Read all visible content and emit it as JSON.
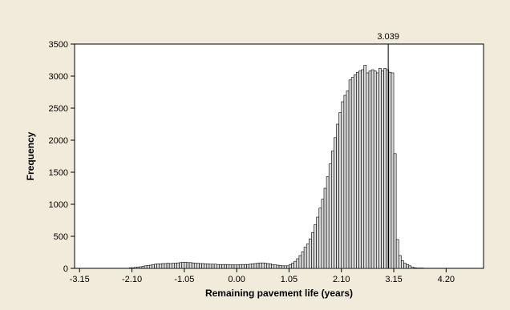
{
  "chart_data": {
    "type": "bar",
    "xlabel": "Remaining pavement life (years)",
    "ylabel": "Frequency",
    "xlim": [
      -3.25,
      4.95
    ],
    "ylim": [
      0,
      3500
    ],
    "x_ticks": [
      "-3.15",
      "-2.10",
      "-1.05",
      "0.00",
      "1.05",
      "2.10",
      "3.15",
      "4.20"
    ],
    "y_ticks": [
      "0",
      "500",
      "1000",
      "1500",
      "2000",
      "2500",
      "3000",
      "3500"
    ],
    "reference_line": {
      "x": 3.039,
      "label": "3.039"
    },
    "bin_start": -3.15,
    "bin_width": 0.05,
    "values": [
      0,
      0,
      0,
      0,
      0,
      0,
      0,
      0,
      0,
      0,
      0,
      0,
      0,
      0,
      0,
      0,
      0,
      0,
      0,
      0,
      10,
      10,
      15,
      20,
      25,
      30,
      40,
      45,
      50,
      60,
      65,
      70,
      70,
      75,
      75,
      80,
      75,
      80,
      80,
      85,
      90,
      95,
      95,
      90,
      90,
      85,
      80,
      80,
      75,
      75,
      70,
      70,
      65,
      65,
      65,
      60,
      60,
      60,
      60,
      60,
      55,
      55,
      55,
      55,
      60,
      60,
      60,
      60,
      65,
      70,
      75,
      80,
      85,
      85,
      80,
      75,
      70,
      60,
      55,
      50,
      45,
      40,
      40,
      40,
      60,
      80,
      110,
      150,
      200,
      260,
      330,
      380,
      460,
      560,
      680,
      800,
      940,
      1080,
      1250,
      1430,
      1630,
      1830,
      2040,
      2250,
      2430,
      2600,
      2700,
      2770,
      2940,
      2980,
      3020,
      3060,
      3080,
      3100,
      3170,
      3050,
      3080,
      3100,
      3080,
      3050,
      3120,
      3080,
      3120,
      3100,
      3060,
      3050,
      1790,
      450,
      200,
      120,
      80,
      60,
      40,
      20,
      10,
      5,
      5,
      5
    ]
  }
}
